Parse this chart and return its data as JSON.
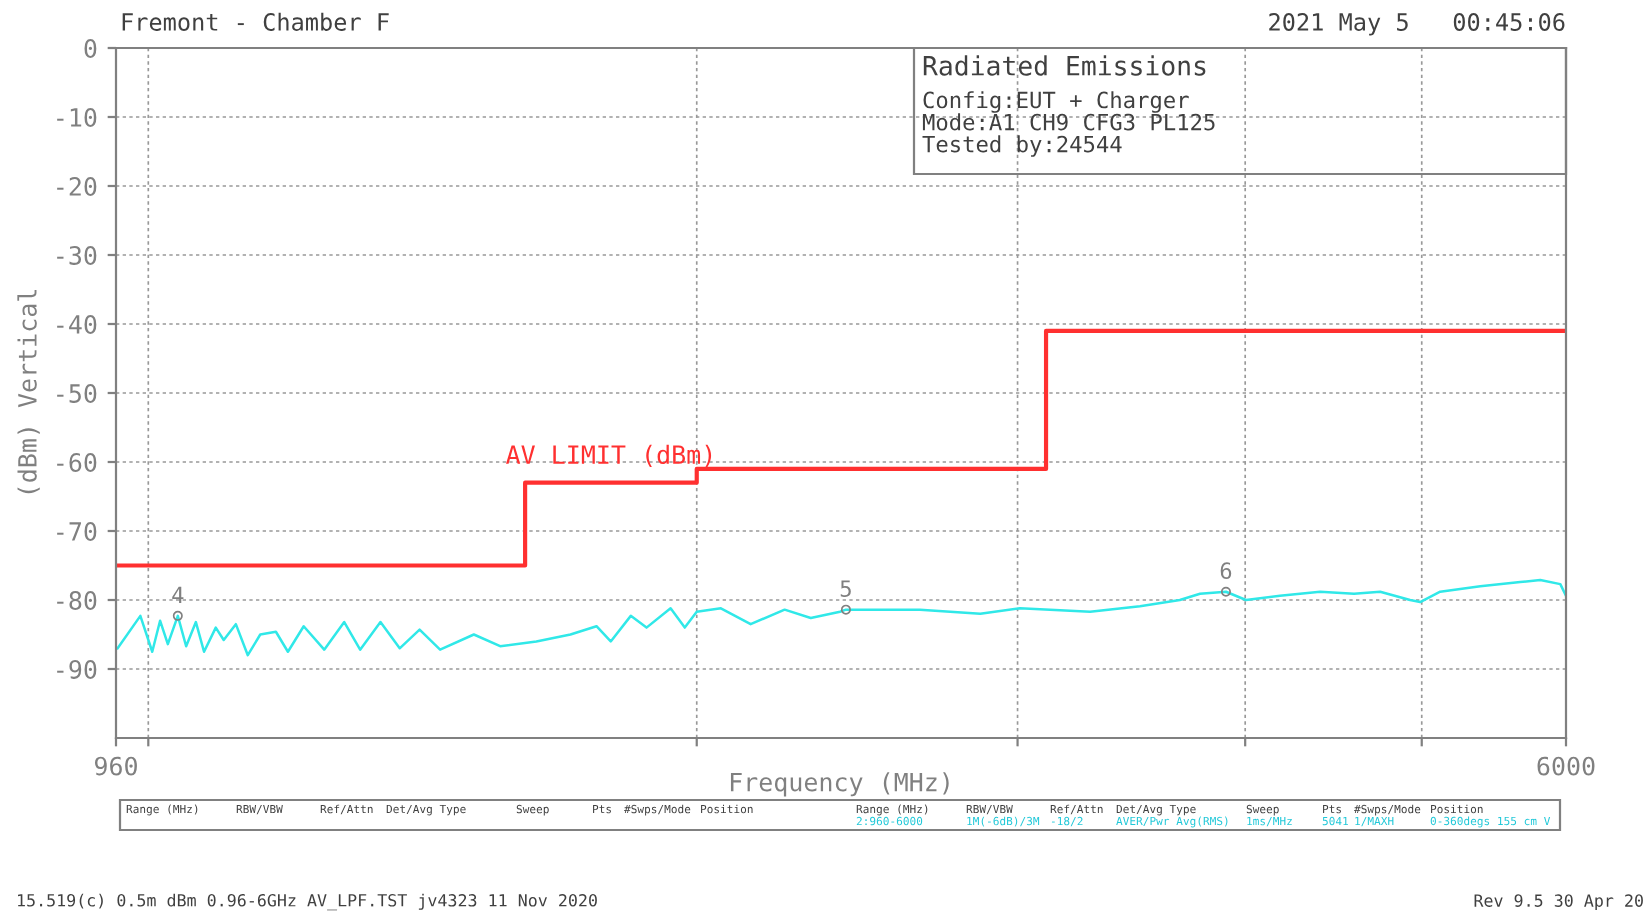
{
  "chart_data": {
    "type": "line",
    "title": "Radiated Emissions",
    "xlabel": "Frequency (MHz)",
    "ylabel": "(dBm) Vertical",
    "log": "x",
    "xlim": [
      960,
      6000
    ],
    "ylim": [
      -100,
      0
    ],
    "xticks": [
      960,
      {
        "value": 1000,
        "label": null
      },
      {
        "value": 2000,
        "label": null
      },
      {
        "value": 3000,
        "label": null
      },
      {
        "value": 4000,
        "label": null
      },
      {
        "value": 5000,
        "label": null
      },
      6000
    ],
    "yticks": [
      0,
      -10,
      -20,
      -30,
      -40,
      -50,
      -60,
      -70,
      -80,
      -90
    ],
    "grid": true,
    "legend": false,
    "line_style": "solid",
    "marker": "none",
    "series": [
      {
        "name": "AV LIMIT (dBm)",
        "type": "step",
        "color": "#ff3030",
        "x": [
          960,
          1610,
          2000,
          3110,
          6000
        ],
        "values": [
          -75,
          -63,
          -61,
          -41,
          -41
        ]
      },
      {
        "color": "#30e8e8",
        "x": [
          962,
          990,
          1005,
          1015,
          1025,
          1038,
          1049,
          1062,
          1073,
          1089,
          1100,
          1117,
          1134,
          1152,
          1175,
          1193,
          1217,
          1249,
          1281,
          1307,
          1341,
          1374,
          1409,
          1446,
          1509,
          1560,
          1633,
          1705,
          1762,
          1794,
          1840,
          1877,
          1935,
          1970,
          2000,
          2062,
          2141,
          2235,
          2310,
          2397,
          2415,
          2652,
          2862,
          3009,
          3288,
          3502,
          3683,
          3778,
          3904,
          4004,
          4180,
          4397,
          4590,
          4744,
          4927,
          4990,
          5118,
          5384,
          5663,
          5808,
          5957,
          6000
        ],
        "values": [
          -87,
          -82.3,
          -87.5,
          -83,
          -86.4,
          -82.3,
          -86.7,
          -83.2,
          -87.5,
          -84,
          -85.8,
          -83.5,
          -88,
          -85,
          -84.6,
          -87.5,
          -83.8,
          -87.2,
          -83.2,
          -87.2,
          -83.2,
          -87,
          -84.3,
          -87.2,
          -85,
          -86.7,
          -86,
          -85,
          -83.8,
          -86,
          -82.3,
          -84,
          -81.2,
          -84,
          -81.7,
          -81.2,
          -83.5,
          -81.4,
          -82.6,
          -81.7,
          -81.4,
          -81.4,
          -82,
          -81.2,
          -81.7,
          -80.9,
          -80,
          -79.1,
          -78.8,
          -80,
          -79.4,
          -78.8,
          -79.1,
          -78.8,
          -80,
          -80.3,
          -78.8,
          -78,
          -77.4,
          -77.1,
          -77.7,
          -79.4
        ]
      }
    ],
    "annotations": [
      "Config:EUT + Charger",
      "Mode:A1 CH9 CFG3 PL125",
      "Tested by:24544",
      "Fremont - Chamber F",
      "2021 May 5   00:45:06",
      "Range (MHz)",
      "RBW/VBW",
      "Ref/Attn",
      "Det/Avg Type",
      "Sweep",
      "Pts",
      "#Swps/Mode",
      "Position",
      "2:960-6000",
      "1M(-6dB)/3M",
      "-18/2",
      "AVER/Pwr Avg(RMS)",
      "1ms/MHz",
      "5041",
      "1/MAXH",
      "0-360degs 155 cm V",
      "15.519(c) 0.5m dBm 0.96-6GHz AV_LPF.TST jv4323 11 Nov 2020",
      "Rev 9.5 30 Apr 20",
      {
        "text": "4",
        "x": 1038,
        "y": -82.3
      },
      {
        "text": "5",
        "x": 2415,
        "y": -81.4
      },
      {
        "text": "6",
        "x": 3904,
        "y": -78.8
      }
    ]
  }
}
